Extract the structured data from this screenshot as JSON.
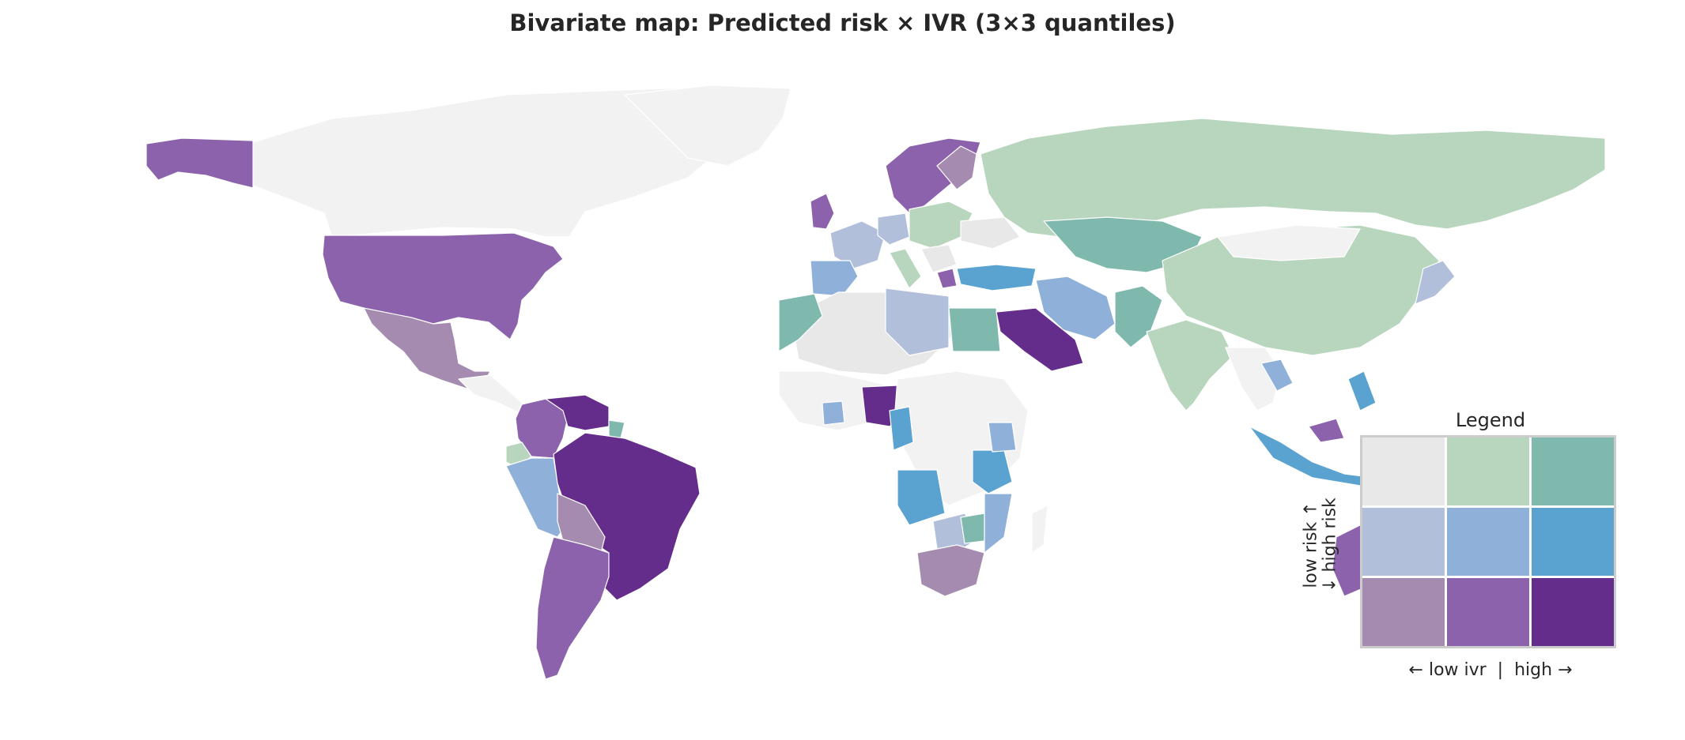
{
  "title": "Bivariate map: Predicted risk × IVR (3×3 quantiles)",
  "legend": {
    "title": "Legend",
    "x_label": "← low ivr  |  high →",
    "y_label_top": "low risk ↑",
    "y_label_bottom": "↓ high risk",
    "grid": [
      [
        "#e8e8e8",
        "#b8d6be",
        "#7fb9ad"
      ],
      [
        "#b2bfdb",
        "#8fb0d9",
        "#5aa3d1"
      ],
      [
        "#a48baf",
        "#8b62ab",
        "#652d8b"
      ]
    ]
  },
  "colors": {
    "no_data": "#f2f2f2",
    "border": "#ffffff"
  }
}
